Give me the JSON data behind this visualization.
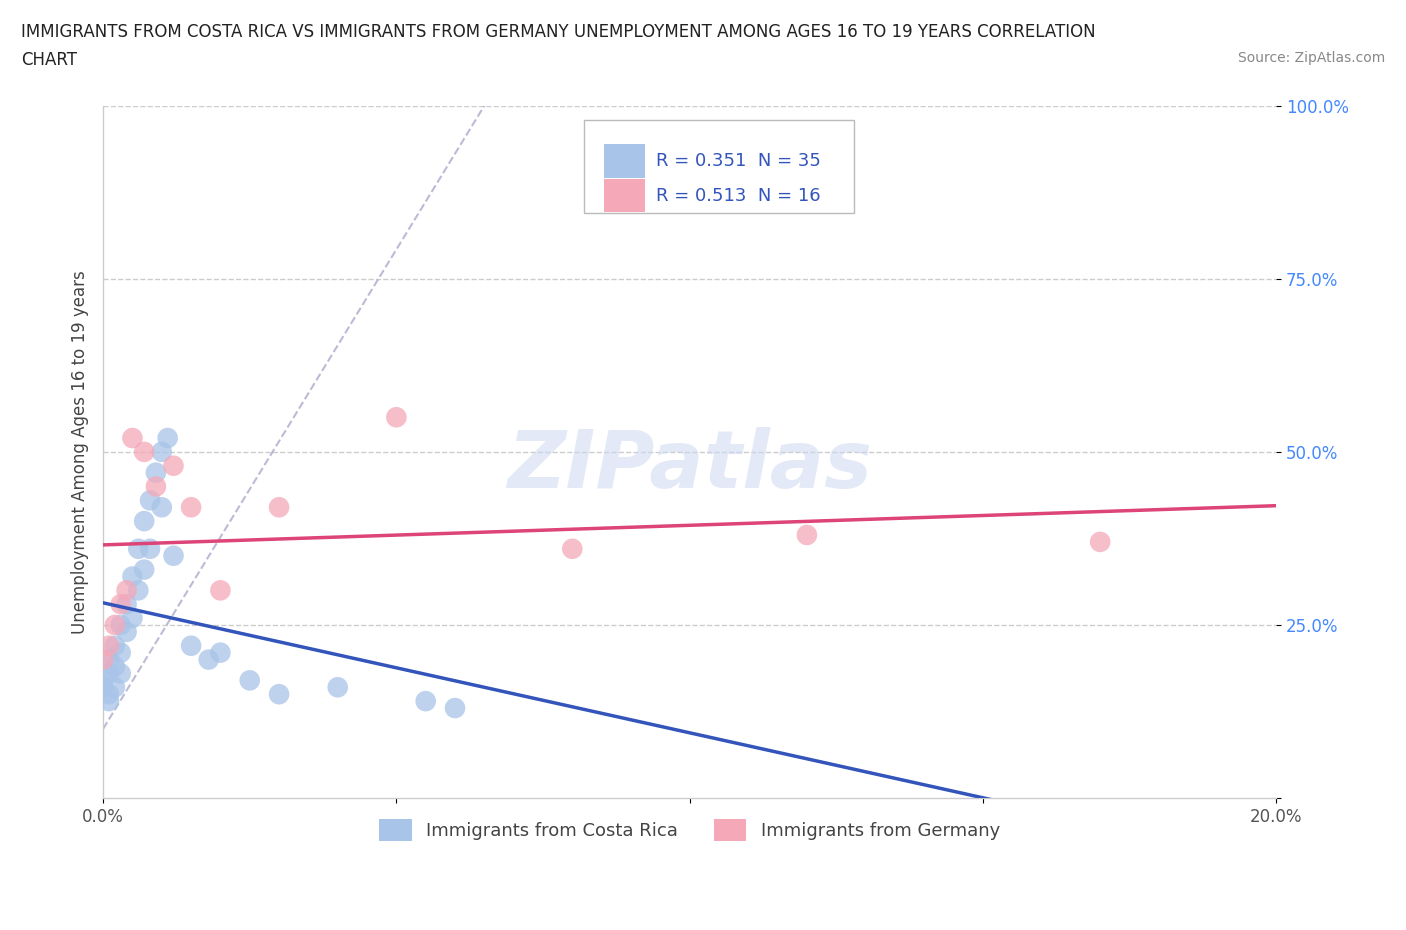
{
  "title_line1": "IMMIGRANTS FROM COSTA RICA VS IMMIGRANTS FROM GERMANY UNEMPLOYMENT AMONG AGES 16 TO 19 YEARS CORRELATION",
  "title_line2": "CHART",
  "source": "Source: ZipAtlas.com",
  "ylabel": "Unemployment Among Ages 16 to 19 years",
  "watermark": "ZIPatlas",
  "legend_label1": "Immigrants from Costa Rica",
  "legend_label2": "Immigrants from Germany",
  "r1": 0.351,
  "n1": 35,
  "r2": 0.513,
  "n2": 16,
  "xlim": [
    0.0,
    0.2
  ],
  "ylim": [
    0.0,
    1.0
  ],
  "color_cr": "#a8c4e8",
  "color_de": "#f4a8b8",
  "line_color_cr": "#3355bb",
  "line_color_de": "#dd4477",
  "dashed_line_color": "#aaaacc",
  "background_color": "#ffffff",
  "legend_color": "#3355bb",
  "cr_x": [
    0.0,
    0.001,
    0.001,
    0.001,
    0.002,
    0.002,
    0.002,
    0.003,
    0.003,
    0.003,
    0.004,
    0.004,
    0.005,
    0.005,
    0.005,
    0.006,
    0.006,
    0.007,
    0.007,
    0.008,
    0.008,
    0.009,
    0.01,
    0.01,
    0.011,
    0.012,
    0.013,
    0.015,
    0.017,
    0.02,
    0.025,
    0.03,
    0.04,
    0.055,
    0.06
  ],
  "cr_y": [
    0.17,
    0.16,
    0.2,
    0.15,
    0.22,
    0.18,
    0.14,
    0.23,
    0.2,
    0.16,
    0.27,
    0.24,
    0.3,
    0.25,
    0.22,
    0.35,
    0.32,
    0.38,
    0.28,
    0.42,
    0.35,
    0.45,
    0.48,
    0.4,
    0.5,
    0.32,
    0.28,
    0.22,
    0.18,
    0.2,
    0.16,
    0.14,
    0.15,
    0.13,
    0.12
  ],
  "de_x": [
    0.0,
    0.001,
    0.002,
    0.003,
    0.004,
    0.005,
    0.007,
    0.009,
    0.012,
    0.015,
    0.02,
    0.03,
    0.05,
    0.08,
    0.12,
    0.17
  ],
  "de_y": [
    0.2,
    0.22,
    0.25,
    0.28,
    0.3,
    0.52,
    0.5,
    0.45,
    0.48,
    0.42,
    0.3,
    0.42,
    0.55,
    0.36,
    0.38,
    0.37
  ]
}
